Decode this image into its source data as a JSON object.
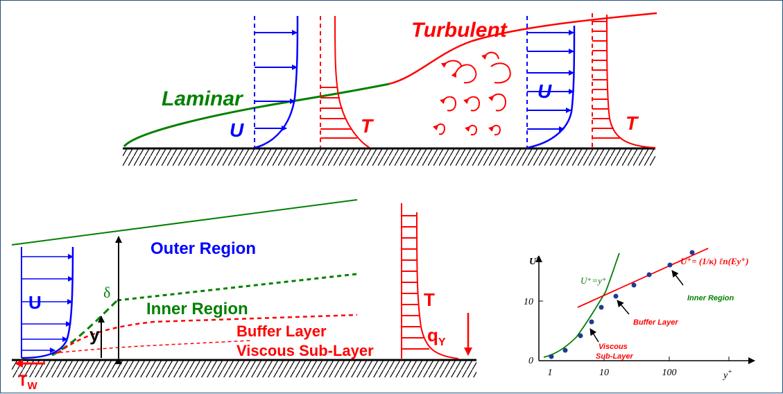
{
  "top": {
    "laminar": "Laminar",
    "turbulent": "Turbulent",
    "u_label_left": "U",
    "t_label_left": "T",
    "u_label_right": "U",
    "t_label_right": "T"
  },
  "bottom_left": {
    "outer_region": "Outer Region",
    "inner_region": "Inner Region",
    "buffer_layer": "Buffer Layer",
    "viscous_sublayer": "Viscous Sub-Layer",
    "u_label": "U",
    "delta": "δ",
    "y": "y",
    "tau_w": "T",
    "tau_w_sub": "W",
    "t_label": "T",
    "q": "q",
    "q_sub": "Y"
  },
  "law_of_wall": {
    "y_axis_label": "U",
    "x_axis_label": "y",
    "superscript": "+",
    "x_ticks": [
      "1",
      "10",
      "100"
    ],
    "y_ticks": [
      "0",
      "10"
    ],
    "linear_law": "U⁺=y⁺",
    "log_law": "U⁺= (1/κ) ℓn(Ey⁺)",
    "inner_region": "Inner Region",
    "buffer_layer": "Buffer Layer",
    "viscous_line1": "Viscous",
    "viscous_line2": "Sub-Layer"
  }
}
